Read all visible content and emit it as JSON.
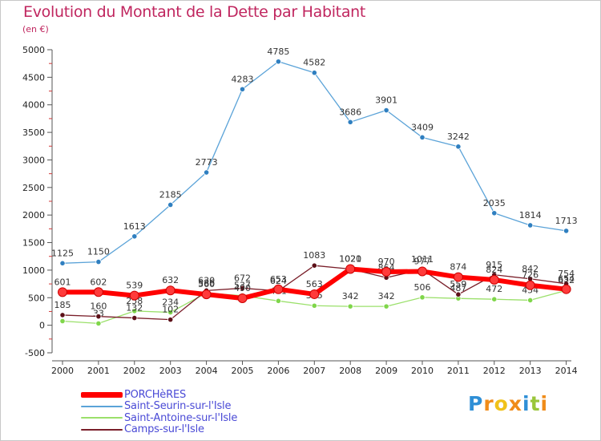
{
  "title": "Evolution du Montant de la Dette par Habitant",
  "subtitle": "(en €)",
  "brand": {
    "letters": [
      "P",
      "r",
      "o",
      "x",
      "i",
      "t",
      "i"
    ],
    "colors": [
      "#2f8fd6",
      "#f08c1a",
      "#f0c21a",
      "#f08c1a",
      "#2f8fd6",
      "#9ac63a",
      "#f08c1a"
    ]
  },
  "chart_data": {
    "type": "line",
    "x": [
      "2000",
      "2001",
      "2002",
      "2003",
      "2004",
      "2005",
      "2006",
      "2007",
      "2008",
      "2009",
      "2010",
      "2011",
      "2012",
      "2013",
      "2014"
    ],
    "ylim": [
      -500,
      5000
    ],
    "yticks": [
      -500,
      0,
      500,
      1000,
      1500,
      2000,
      2500,
      3000,
      3500,
      4000,
      4500,
      5000
    ],
    "grid": false,
    "legend_position": "bottom-left",
    "series": [
      {
        "name": "PORCHèRES",
        "color": "#ff0000",
        "marker": "#ff3b3b",
        "width": 6,
        "values": [
          601,
          602,
          539,
          632,
          560,
          490,
          653,
          563,
          1021,
          970,
          977,
          874,
          824,
          726,
          654
        ],
        "labels": [
          "601",
          "602",
          "539",
          "632",
          "560",
          "490",
          "653",
          "563",
          "1021",
          "970",
          "977",
          "874",
          "824",
          "726",
          "654"
        ]
      },
      {
        "name": "Saint-Seurin-sur-l'Isle",
        "color": "#5ba3d8",
        "marker": "#2f7fc0",
        "width": 1.3,
        "values": [
          1125,
          1150,
          1613,
          2185,
          2773,
          4283,
          4785,
          4582,
          3686,
          3901,
          3409,
          3242,
          2035,
          1814,
          1713
        ],
        "labels": [
          "1125",
          "1150",
          "1613",
          "2185",
          "2773",
          "4283",
          "4785",
          "4582",
          "3686",
          "3901",
          "3409",
          "3242",
          "2035",
          "1814",
          "1713"
        ]
      },
      {
        "name": "Saint-Antoine-sur-l'Isle",
        "color": "#9be06b",
        "marker": "#7fd64a",
        "width": 1.3,
        "values": [
          75,
          33,
          258,
          234,
          586,
          537,
          441,
          355,
          342,
          342,
          506,
          487,
          472,
          454,
          632
        ],
        "labels": [
          "",
          "33",
          "258",
          "234",
          "586",
          "537",
          "441",
          "355",
          "342",
          "342",
          "506",
          "487",
          "472",
          "454",
          "632"
        ]
      },
      {
        "name": "Camps-sur-l'Isle",
        "color": "#7a1f2a",
        "marker": "#5c1018",
        "width": 1.3,
        "values": [
          185,
          160,
          132,
          102,
          630,
          672,
          624,
          1083,
          1020,
          864,
          1011,
          559,
          915,
          842,
          754
        ],
        "labels": [
          "185",
          "160",
          "132",
          "102",
          "630",
          "672",
          "624",
          "1083",
          "1020",
          "864",
          "1011",
          "559",
          "915",
          "842",
          "754"
        ]
      }
    ]
  }
}
